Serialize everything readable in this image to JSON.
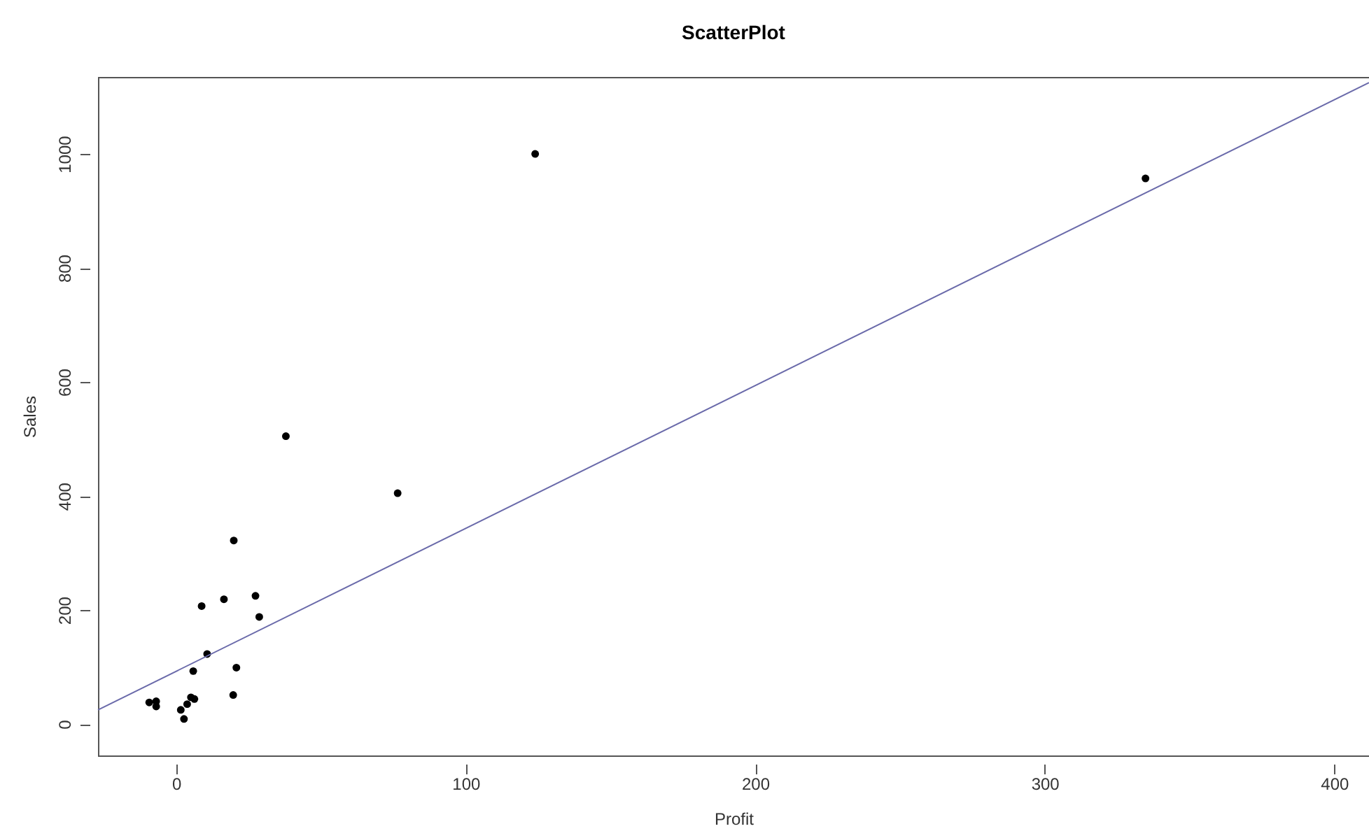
{
  "chart_data": {
    "type": "scatter",
    "title": "ScatterPlot",
    "xlabel": "Profit",
    "ylabel": "Sales",
    "xlim": [
      -27,
      412
    ],
    "ylim": [
      -55,
      1135
    ],
    "xticks": [
      0,
      100,
      200,
      300,
      400
    ],
    "yticks": [
      0,
      200,
      400,
      600,
      800,
      1000
    ],
    "grid": false,
    "series": [
      {
        "color": "#000000",
        "marker": "circle",
        "x": [
          -9.3,
          -6.9,
          -6.9,
          1.6,
          2.7,
          3.8,
          5.1,
          6.3,
          5.9,
          10.7,
          8.8,
          16.5,
          27.4,
          28.7,
          20.8,
          19.7,
          37.9,
          76.5,
          19.9,
          124,
          334.8
        ],
        "values": [
          38,
          40,
          31,
          25,
          9,
          35,
          47,
          44,
          93,
          123,
          207,
          219,
          225,
          188,
          99,
          51,
          505,
          405,
          322,
          1000,
          957
        ]
      },
      {
        "type": "line",
        "color": "#6a6aaa",
        "line_style": "solid",
        "x": [
          -27,
          412
        ],
        "values": [
          25,
          1125
        ]
      }
    ]
  }
}
